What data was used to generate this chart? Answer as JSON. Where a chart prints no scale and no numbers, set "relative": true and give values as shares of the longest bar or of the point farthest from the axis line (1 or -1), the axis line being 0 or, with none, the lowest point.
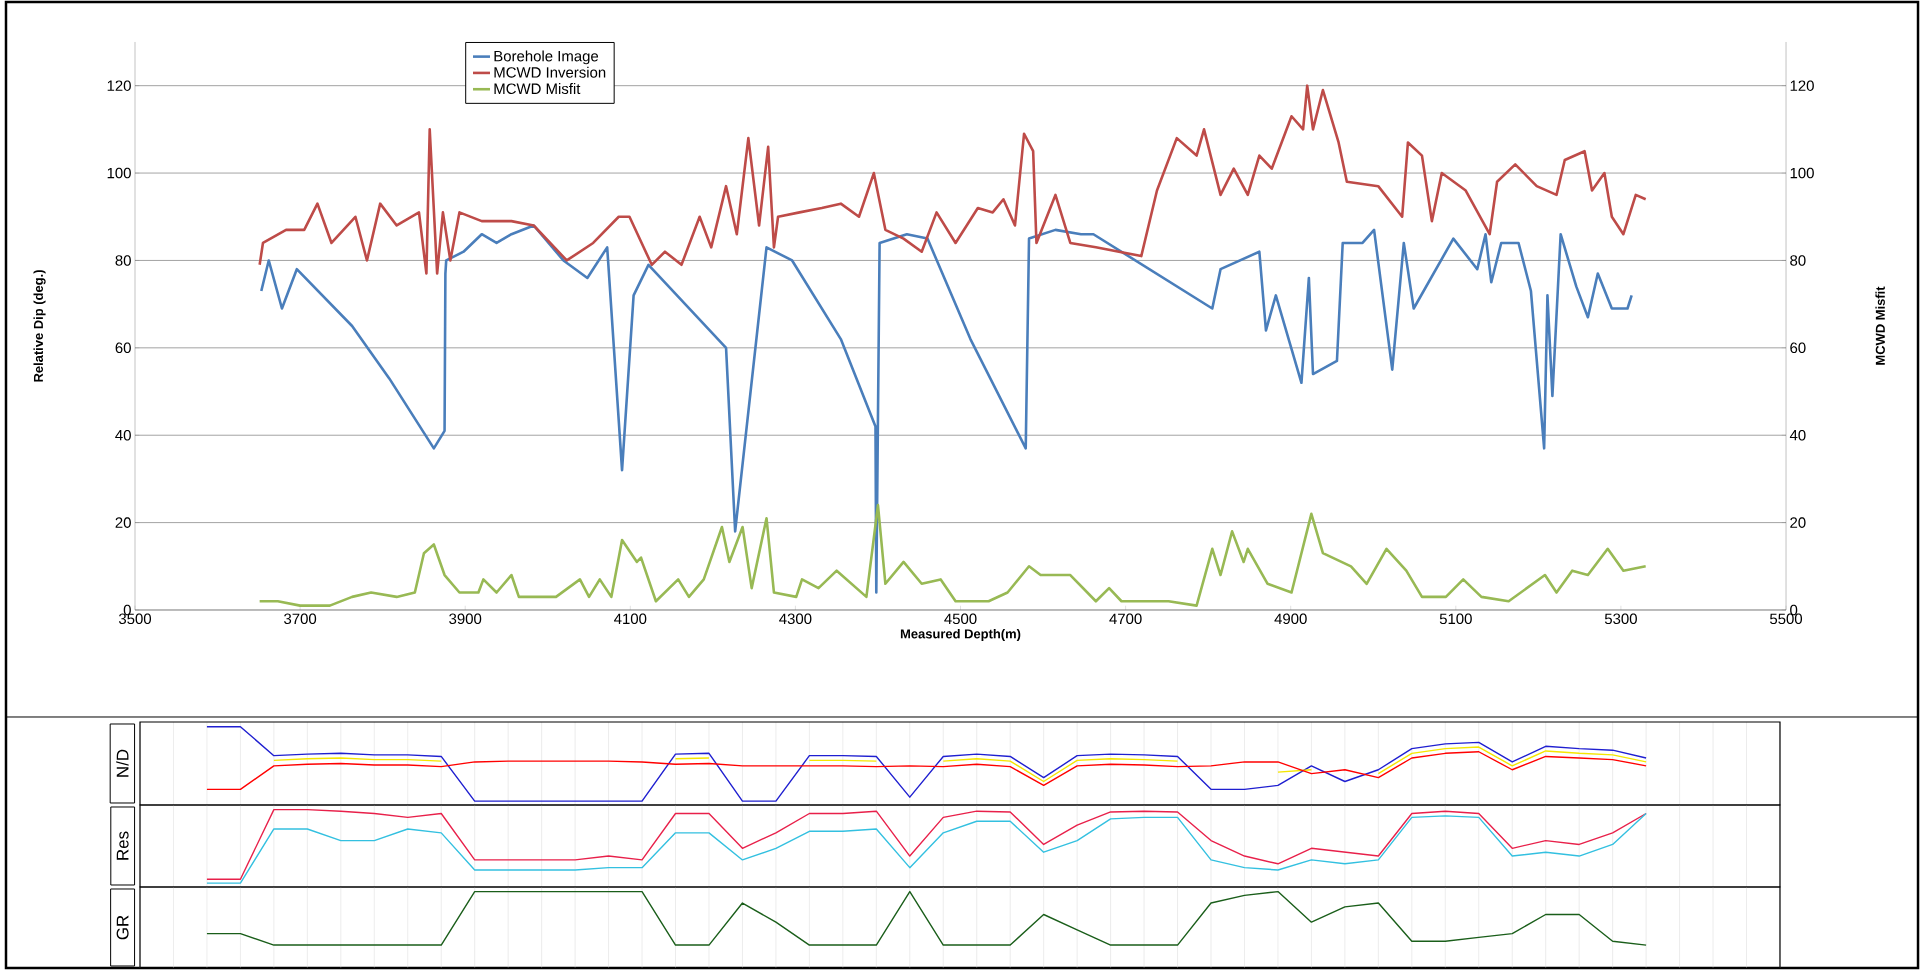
{
  "chart_data": [
    {
      "type": "line",
      "xlabel": "Measured Depth(m)",
      "ylabel": "Relative Dip (deg.)",
      "y2label": "MCWD Misfit",
      "xlim": [
        3500,
        5500
      ],
      "xticks": [
        3500,
        3700,
        3900,
        4100,
        4300,
        4500,
        4700,
        4900,
        5100,
        5300,
        5500
      ],
      "ylim": [
        0,
        130
      ],
      "yticks": [
        0,
        20,
        40,
        60,
        80,
        100,
        120
      ],
      "y2lim": [
        0,
        130
      ],
      "y2ticks": [
        0,
        20,
        40,
        60,
        80,
        100,
        120
      ],
      "grid": "y",
      "legend": "top left",
      "marker": "none",
      "line_style": "solid",
      "series": [
        {
          "name": "Borehole Image",
          "color": "#4a7ebb",
          "x": [
            3653,
            3662,
            3678,
            3696,
            3763,
            3808,
            3862,
            3875,
            3876,
            3877,
            3898,
            3920,
            3938,
            3956,
            3983,
            4019,
            4048,
            4072,
            4090,
            4104,
            4122,
            4216,
            4227,
            4265,
            4296,
            4355,
            4397,
            4398,
            4402,
            4435,
            4460,
            4512,
            4579,
            4583,
            4615,
            4646,
            4661,
            4805,
            4815,
            4862,
            4870,
            4882,
            4913,
            4922,
            4927,
            4956,
            4963,
            4987,
            5001,
            5023,
            5037,
            5049,
            5097,
            5126,
            5136,
            5143,
            5155,
            5176,
            5191,
            5207,
            5211,
            5217,
            5227,
            5246,
            5260,
            5272,
            5289,
            5308,
            5313
          ],
          "values": [
            73,
            80,
            69,
            78,
            65,
            53,
            37,
            41,
            77,
            80,
            82,
            86,
            84,
            86,
            88,
            80,
            76,
            83,
            32,
            72,
            79,
            60,
            18,
            83,
            80,
            62,
            42,
            4,
            84,
            86,
            85,
            62,
            37,
            85,
            87,
            86,
            86,
            69,
            78,
            82,
            64,
            72,
            52,
            76,
            54,
            57,
            84,
            84,
            87,
            55,
            84,
            69,
            85,
            78,
            86,
            75,
            84,
            84,
            73,
            37,
            72,
            49,
            86,
            74,
            67,
            77,
            69,
            69,
            72
          ]
        },
        {
          "name": "MCWD Inversion",
          "color": "#be4b48",
          "x": [
            3651,
            3655,
            3683,
            3705,
            3721,
            3738,
            3767,
            3781,
            3797,
            3817,
            3844,
            3853,
            3857,
            3866,
            3873,
            3882,
            3893,
            3920,
            3956,
            3983,
            4023,
            4055,
            4086,
            4099,
            4126,
            4142,
            4162,
            4184,
            4198,
            4216,
            4229,
            4243,
            4256,
            4267,
            4274,
            4279,
            4305,
            4332,
            4355,
            4377,
            4395,
            4409,
            4431,
            4453,
            4471,
            4494,
            4521,
            4539,
            4552,
            4566,
            4577,
            4588,
            4592,
            4615,
            4633,
            4664,
            4719,
            4738,
            4762,
            4786,
            4795,
            4815,
            4831,
            4848,
            4862,
            4877,
            4901,
            4915,
            4920,
            4927,
            4939,
            4958,
            4968,
            5006,
            5035,
            5042,
            5059,
            5071,
            5083,
            5112,
            5141,
            5150,
            5172,
            5198,
            5222,
            5232,
            5256,
            5265,
            5280,
            5289,
            5303,
            5318,
            5330
          ],
          "values": [
            79,
            84,
            87,
            87,
            93,
            84,
            90,
            80,
            93,
            88,
            91,
            77,
            110,
            77,
            91,
            80,
            91,
            89,
            89,
            88,
            80,
            84,
            90,
            90,
            79,
            82,
            79,
            90,
            83,
            97,
            86,
            108,
            88,
            106,
            83,
            90,
            91,
            92,
            93,
            90,
            100,
            87,
            85,
            82,
            91,
            84,
            92,
            91,
            94,
            88,
            109,
            105,
            84,
            95,
            84,
            83,
            81,
            96,
            108,
            104,
            110,
            95,
            101,
            95,
            104,
            101,
            113,
            110,
            120,
            110,
            119,
            107,
            98,
            97,
            90,
            107,
            104,
            89,
            100,
            96,
            86,
            98,
            102,
            97,
            95,
            103,
            105,
            96,
            100,
            90,
            86,
            95,
            94
          ]
        },
        {
          "name": "MCWD Misfit",
          "color": "#98b954",
          "axis": "y2",
          "x": [
            3651,
            3673,
            3700,
            3736,
            3763,
            3786,
            3817,
            3839,
            3850,
            3862,
            3875,
            3893,
            3916,
            3922,
            3938,
            3956,
            3965,
            4010,
            4039,
            4050,
            4063,
            4077,
            4090,
            4108,
            4113,
            4131,
            4158,
            4171,
            4189,
            4211,
            4220,
            4236,
            4247,
            4265,
            4274,
            4301,
            4308,
            4328,
            4350,
            4386,
            4400,
            4409,
            4431,
            4453,
            4476,
            4494,
            4534,
            4557,
            4583,
            4597,
            4633,
            4664,
            4680,
            4695,
            4752,
            4786,
            4805,
            4815,
            4829,
            4843,
            4848,
            4872,
            4901,
            4925,
            4939,
            4973,
            4992,
            5016,
            5040,
            5059,
            5088,
            5109,
            5131,
            5164,
            5208,
            5222,
            5241,
            5260,
            5284,
            5303,
            5330
          ],
          "values": [
            2,
            2,
            1,
            1,
            3,
            4,
            3,
            4,
            13,
            15,
            8,
            4,
            4,
            7,
            4,
            8,
            3,
            3,
            7,
            3,
            7,
            3,
            16,
            11,
            12,
            2,
            7,
            3,
            7,
            19,
            11,
            19,
            5,
            21,
            4,
            3,
            7,
            5,
            9,
            3,
            24,
            6,
            11,
            6,
            7,
            2,
            2,
            4,
            10,
            8,
            8,
            2,
            5,
            2,
            2,
            1,
            14,
            8,
            18,
            11,
            14,
            6,
            4,
            22,
            13,
            10,
            6,
            14,
            9,
            3,
            3,
            7,
            3,
            2,
            8,
            4,
            9,
            8,
            14,
            9,
            10
          ]
        }
      ]
    },
    {
      "type": "line",
      "ylabel": "N/D",
      "relative": true,
      "grid": "x",
      "legend": false,
      "marker": "none",
      "categories": [
        null,
        null,
        null,
        null,
        null,
        null,
        null,
        null,
        null,
        null,
        null,
        null,
        null,
        null,
        null,
        null,
        null,
        null,
        null,
        null,
        null,
        null,
        null,
        null,
        null,
        null,
        null,
        null,
        null,
        null,
        null,
        null,
        null,
        null,
        null,
        null,
        null,
        null,
        null,
        null,
        null,
        null,
        null,
        null,
        null,
        null,
        null,
        null,
        null,
        null
      ],
      "series": [
        {
          "color": "#1f1fd0",
          "values": [
            null,
            null,
            1,
            1,
            0.63,
            0.65,
            0.66,
            0.64,
            0.64,
            0.62,
            0.05,
            0.05,
            0.05,
            0.05,
            0.05,
            0.05,
            0.65,
            0.66,
            0.05,
            0.05,
            0.63,
            0.63,
            0.62,
            0.1,
            0.62,
            0.65,
            0.62,
            0.35,
            0.63,
            0.65,
            0.64,
            0.62,
            0.2,
            0.2,
            0.25,
            0.5,
            0.3,
            0.45,
            0.72,
            0.78,
            0.8,
            0.55,
            0.75,
            0.72,
            0.7,
            0.6,
            null,
            null,
            null,
            null
          ]
        },
        {
          "color": "#f5e600",
          "values": [
            null,
            null,
            null,
            null,
            0.57,
            0.59,
            0.6,
            0.58,
            0.58,
            0.56,
            null,
            null,
            null,
            null,
            null,
            null,
            0.59,
            0.6,
            null,
            null,
            0.57,
            0.57,
            0.56,
            null,
            0.56,
            0.59,
            0.56,
            0.3,
            0.57,
            0.59,
            0.58,
            0.56,
            null,
            null,
            0.42,
            0.45,
            null,
            0.4,
            0.66,
            0.72,
            0.74,
            0.5,
            0.69,
            0.66,
            0.64,
            0.55,
            null,
            null,
            null,
            null
          ]
        },
        {
          "color": "#ff0000",
          "values": [
            null,
            null,
            0.2,
            0.2,
            0.5,
            0.52,
            0.53,
            0.51,
            0.51,
            0.49,
            0.55,
            0.56,
            0.56,
            0.56,
            0.56,
            0.55,
            0.52,
            0.53,
            0.5,
            0.5,
            0.5,
            0.5,
            0.49,
            0.5,
            0.49,
            0.52,
            0.49,
            0.25,
            0.5,
            0.52,
            0.51,
            0.49,
            0.5,
            0.55,
            0.55,
            0.4,
            0.45,
            0.35,
            0.6,
            0.66,
            0.68,
            0.45,
            0.62,
            0.6,
            0.58,
            0.5,
            null,
            null,
            null,
            null
          ]
        }
      ]
    },
    {
      "type": "line",
      "ylabel": "Res",
      "relative": true,
      "grid": "x",
      "legend": false,
      "marker": "none",
      "categories": [
        null,
        null,
        null,
        null,
        null,
        null,
        null,
        null,
        null,
        null,
        null,
        null,
        null,
        null,
        null,
        null,
        null,
        null,
        null,
        null,
        null,
        null,
        null,
        null,
        null,
        null,
        null,
        null,
        null,
        null,
        null,
        null,
        null,
        null,
        null,
        null,
        null,
        null,
        null,
        null,
        null,
        null,
        null,
        null,
        null,
        null,
        null,
        null,
        null,
        null
      ],
      "series": [
        {
          "color": "#e8204a",
          "values": [
            null,
            null,
            0.1,
            0.1,
            1,
            1,
            0.98,
            0.95,
            0.9,
            0.95,
            0.35,
            0.35,
            0.35,
            0.35,
            0.4,
            0.35,
            0.95,
            0.95,
            0.5,
            0.7,
            0.95,
            0.95,
            0.98,
            0.4,
            0.9,
            0.98,
            0.97,
            0.55,
            0.8,
            0.97,
            0.98,
            0.97,
            0.6,
            0.4,
            0.3,
            0.5,
            0.45,
            0.4,
            0.95,
            0.98,
            0.95,
            0.5,
            0.6,
            0.55,
            0.7,
            0.95,
            null,
            null,
            null,
            null
          ]
        },
        {
          "color": "#33c0e0",
          "values": [
            null,
            null,
            0.05,
            0.05,
            0.75,
            0.75,
            0.6,
            0.6,
            0.75,
            0.7,
            0.22,
            0.22,
            0.22,
            0.22,
            0.25,
            0.25,
            0.7,
            0.7,
            0.35,
            0.5,
            0.72,
            0.72,
            0.75,
            0.25,
            0.7,
            0.85,
            0.85,
            0.45,
            0.6,
            0.88,
            0.9,
            0.9,
            0.35,
            0.25,
            0.22,
            0.35,
            0.3,
            0.35,
            0.9,
            0.92,
            0.9,
            0.4,
            0.45,
            0.4,
            0.55,
            0.95,
            null,
            null,
            null,
            null
          ]
        }
      ]
    },
    {
      "type": "line",
      "ylabel": "GR",
      "relative": true,
      "grid": "x",
      "legend": false,
      "marker": "none",
      "categories": [
        null,
        null,
        null,
        null,
        null,
        null,
        null,
        null,
        null,
        null,
        null,
        null,
        null,
        null,
        null,
        null,
        null,
        null,
        null,
        null,
        null,
        null,
        null,
        null,
        null,
        null,
        null,
        null,
        null,
        null,
        null,
        null,
        null,
        null,
        null,
        null,
        null,
        null,
        null,
        null,
        null,
        null,
        null,
        null,
        null,
        null,
        null,
        null,
        null,
        null
      ],
      "series": [
        {
          "color": "#1a5e1a",
          "values": [
            null,
            null,
            0.45,
            0.45,
            0.3,
            0.3,
            0.3,
            0.3,
            0.3,
            0.3,
            1,
            1,
            1,
            1,
            1,
            1,
            0.3,
            0.3,
            0.85,
            0.6,
            0.3,
            0.3,
            0.3,
            1,
            0.3,
            0.3,
            0.3,
            0.7,
            0.5,
            0.3,
            0.3,
            0.3,
            0.85,
            0.95,
            1,
            0.6,
            0.8,
            0.85,
            0.35,
            0.35,
            0.4,
            0.45,
            0.7,
            0.7,
            0.35,
            0.3,
            null,
            null,
            null,
            null
          ]
        }
      ]
    }
  ]
}
